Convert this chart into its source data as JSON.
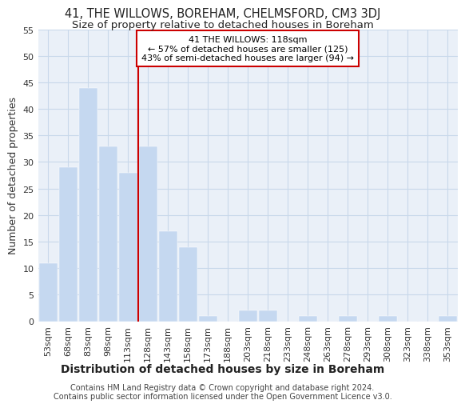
{
  "title": "41, THE WILLOWS, BOREHAM, CHELMSFORD, CM3 3DJ",
  "subtitle": "Size of property relative to detached houses in Boreham",
  "xlabel": "Distribution of detached houses by size in Boreham",
  "ylabel": "Number of detached properties",
  "bar_labels": [
    "53sqm",
    "68sqm",
    "83sqm",
    "98sqm",
    "113sqm",
    "128sqm",
    "143sqm",
    "158sqm",
    "173sqm",
    "188sqm",
    "203sqm",
    "218sqm",
    "233sqm",
    "248sqm",
    "263sqm",
    "278sqm",
    "293sqm",
    "308sqm",
    "323sqm",
    "338sqm",
    "353sqm"
  ],
  "bar_values": [
    11,
    29,
    44,
    33,
    28,
    33,
    17,
    14,
    1,
    0,
    2,
    2,
    0,
    1,
    0,
    1,
    0,
    1,
    0,
    0,
    1
  ],
  "bar_color": "#c5d8f0",
  "bar_edge_color": "#c5d8f0",
  "grid_color": "#c8d8ea",
  "background_color": "#eaf0f8",
  "vline_x": 4.5,
  "vline_color": "#cc0000",
  "annotation_text": "41 THE WILLOWS: 118sqm\n← 57% of detached houses are smaller (125)\n43% of semi-detached houses are larger (94) →",
  "annotation_box_color": "#ffffff",
  "annotation_box_edge_color": "#cc0000",
  "ylim": [
    0,
    55
  ],
  "yticks": [
    0,
    5,
    10,
    15,
    20,
    25,
    30,
    35,
    40,
    45,
    50,
    55
  ],
  "footer_line1": "Contains HM Land Registry data © Crown copyright and database right 2024.",
  "footer_line2": "Contains public sector information licensed under the Open Government Licence v3.0.",
  "title_fontsize": 10.5,
  "subtitle_fontsize": 9.5,
  "xlabel_fontsize": 10,
  "ylabel_fontsize": 9,
  "tick_fontsize": 8,
  "annotation_fontsize": 8,
  "footer_fontsize": 7
}
